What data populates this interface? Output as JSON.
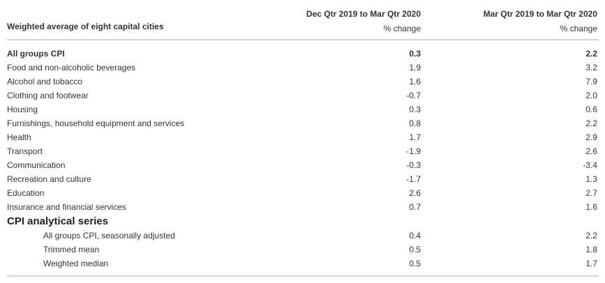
{
  "header": {
    "row_label": "Weighted average of eight capital cities",
    "col1_title": "Dec Qtr 2019 to Mar Qtr 2020",
    "col1_unit": "% change",
    "col2_title": "Mar Qtr 2019 to Mar Qtr 2020",
    "col2_unit": "% change"
  },
  "rows": [
    {
      "name": "All groups CPI",
      "v1": "0.3",
      "v2": "2.2"
    },
    {
      "name": "Food and non-alcoholic beverages",
      "v1": "1.9",
      "v2": "3.2"
    },
    {
      "name": "Alcohol and tobacco",
      "v1": "1.6",
      "v2": "7.9"
    },
    {
      "name": "Clothing and footwear",
      "v1": "-0.7",
      "v2": "2.0"
    },
    {
      "name": "Housing",
      "v1": "0.3",
      "v2": "0.6"
    },
    {
      "name": "Furnishings, household equipment and services",
      "v1": "0.8",
      "v2": "2.2"
    },
    {
      "name": "Health",
      "v1": "1.7",
      "v2": "2.9"
    },
    {
      "name": "Transport",
      "v1": "-1.9",
      "v2": "2.6"
    },
    {
      "name": "Communication",
      "v1": "-0.3",
      "v2": "-3.4"
    },
    {
      "name": "Recreation and culture",
      "v1": "-1.7",
      "v2": "1.3"
    },
    {
      "name": "Education",
      "v1": "2.6",
      "v2": "2.7"
    },
    {
      "name": "Insurance and financial services",
      "v1": "0.7",
      "v2": "1.6"
    }
  ],
  "analytical": {
    "title": "CPI analytical series",
    "rows": [
      {
        "name": "All groups CPI, seasonally adjusted",
        "v1": "0.4",
        "v2": "2.2"
      },
      {
        "name": "Trimmed mean",
        "v1": "0.5",
        "v2": "1.8"
      },
      {
        "name": "Weighted median",
        "v1": "0.5",
        "v2": "1.7"
      }
    ]
  }
}
